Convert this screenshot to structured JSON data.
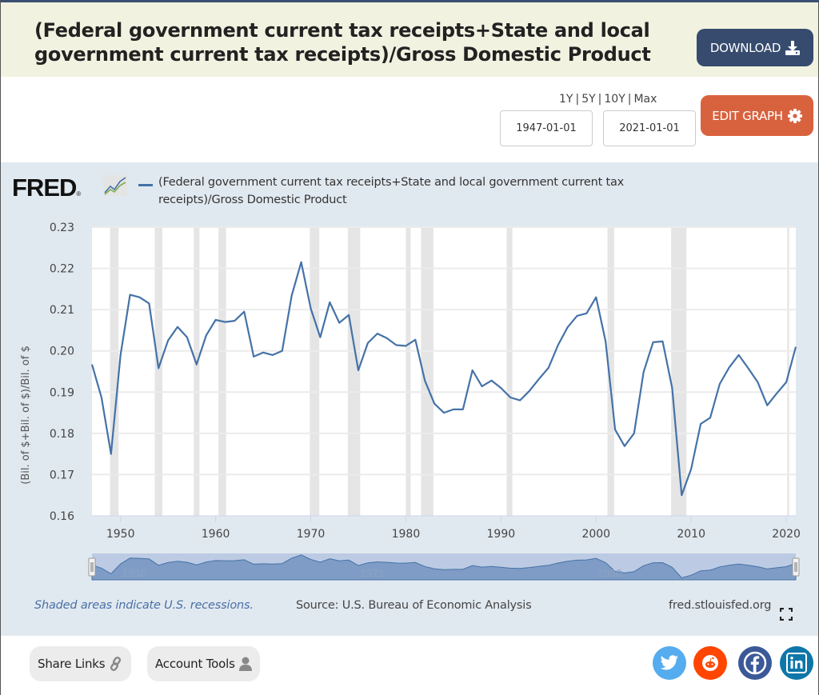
{
  "header": {
    "title": "(Federal government current tax receipts+State and local government current tax receipts)/Gross Domestic Product",
    "download_label": "DOWNLOAD"
  },
  "controls": {
    "range_links": [
      "1Y",
      "5Y",
      "10Y",
      "Max"
    ],
    "start_date": "1947-01-01",
    "end_date": "2021-01-01",
    "edit_graph_label": "EDIT GRAPH"
  },
  "chart_panel": {
    "logo_text": "FRED",
    "logo_registered": "®"
  },
  "footer": {
    "recession_note": "Shaded areas indicate U.S. recessions.",
    "source": "Source: U.S. Bureau of Economic Analysis",
    "site": "fred.stlouisfed.org"
  },
  "bottom_bar": {
    "share_links_label": "Share Links",
    "account_tools_label": "Account Tools",
    "social": [
      "twitter",
      "reddit",
      "facebook",
      "linkedin"
    ]
  },
  "colors": {
    "series_line": "#4572a7",
    "download_button": "#364b6e",
    "edit_button": "#d9623e",
    "recession_band": "#e5e5e5",
    "panel_bg": "#e1e9f0",
    "twitter": "#55acee",
    "reddit": "#ff4500",
    "facebook": "#3b5998",
    "linkedin": "#0e76a8"
  },
  "chart_data": {
    "type": "line",
    "title": "",
    "legend": [
      "(Federal government current tax receipts+State and local government current tax receipts)/Gross Domestic Product"
    ],
    "legend_placement": "top-left",
    "xlabel": "",
    "ylabel": "(Bil. of $+Bil. of $)/Bil. of $",
    "xlim": [
      1947,
      2021
    ],
    "ylim": [
      0.16,
      0.23
    ],
    "yticks": [
      "0.16",
      "0.17",
      "0.18",
      "0.19",
      "0.20",
      "0.21",
      "0.22",
      "0.23"
    ],
    "xticks": [
      "1950",
      "1960",
      "1970",
      "1980",
      "1990",
      "2000",
      "2010",
      "2020"
    ],
    "grid": true,
    "navigator_labels": [
      "1950",
      "1975",
      "2000"
    ],
    "series": [
      {
        "name": "(Federal government current tax receipts+State and local government current tax receipts)/Gross Domestic Product",
        "x": [
          1947,
          1948,
          1949,
          1950,
          1951,
          1952,
          1953,
          1954,
          1955,
          1956,
          1957,
          1958,
          1959,
          1960,
          1961,
          1962,
          1963,
          1964,
          1965,
          1966,
          1967,
          1968,
          1969,
          1970,
          1971,
          1972,
          1973,
          1974,
          1975,
          1976,
          1977,
          1978,
          1979,
          1980,
          1981,
          1982,
          1983,
          1984,
          1985,
          1986,
          1987,
          1988,
          1989,
          1990,
          1991,
          1992,
          1993,
          1994,
          1995,
          1996,
          1997,
          1998,
          1999,
          2000,
          2001,
          2002,
          2003,
          2004,
          2005,
          2006,
          2007,
          2008,
          2009,
          2010,
          2011,
          2012,
          2013,
          2014,
          2015,
          2016,
          2017,
          2018,
          2019,
          2020,
          2021
        ],
        "values": [
          0.1967,
          0.1887,
          0.175,
          0.199,
          0.2136,
          0.213,
          0.2115,
          0.1958,
          0.2025,
          0.2058,
          0.2033,
          0.1967,
          0.2037,
          0.2075,
          0.207,
          0.2073,
          0.2095,
          0.1986,
          0.1996,
          0.199,
          0.2,
          0.2134,
          0.2215,
          0.2103,
          0.2033,
          0.2118,
          0.2068,
          0.2087,
          0.1953,
          0.2019,
          0.2042,
          0.2031,
          0.2014,
          0.2012,
          0.2027,
          0.1928,
          0.1872,
          0.185,
          0.1858,
          0.1858,
          0.1953,
          0.1914,
          0.1928,
          0.191,
          0.1887,
          0.188,
          0.1903,
          0.1932,
          0.1959,
          0.2014,
          0.2057,
          0.2085,
          0.2091,
          0.213,
          0.2023,
          0.1809,
          0.1769,
          0.18,
          0.1949,
          0.2021,
          0.2023,
          0.191,
          0.165,
          0.1714,
          0.1823,
          0.1838,
          0.192,
          0.196,
          0.199,
          0.1958,
          0.1924,
          0.1868,
          0.1897,
          0.1924,
          0.201
        ]
      }
    ],
    "recessions": [
      [
        1948.9,
        1949.8
      ],
      [
        1953.6,
        1954.4
      ],
      [
        1957.7,
        1958.3
      ],
      [
        1960.3,
        1961.1
      ],
      [
        1969.9,
        1970.9
      ],
      [
        1973.9,
        1975.2
      ],
      [
        1980.0,
        1980.5
      ],
      [
        1981.6,
        1982.9
      ],
      [
        1990.6,
        1991.2
      ],
      [
        2001.2,
        2001.9
      ],
      [
        2007.9,
        2009.5
      ],
      [
        2020.1,
        2020.3
      ]
    ]
  }
}
